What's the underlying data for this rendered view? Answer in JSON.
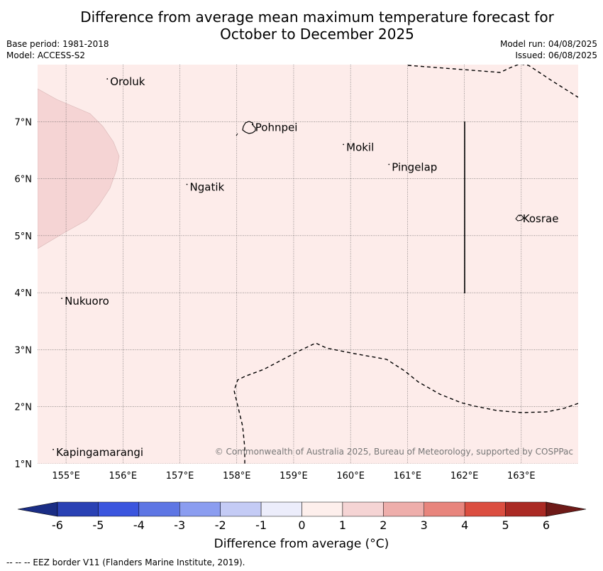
{
  "title_line1": "Difference from average mean maximum temperature forecast for",
  "title_line2": "October to December 2025",
  "base_period": "Base period: 1981-2018",
  "model": "Model: ACCESS-S2",
  "model_run": "Model run: 04/08/2025",
  "issued": "Issued: 06/08/2025",
  "copyright": "© Commonwealth of Australia 2025, Bureau of Meteorology, supported by COSPPac",
  "footer": "--  --  -- EEZ border V11 (Flanders Marine Institute, 2019).",
  "colorbar_label": "Difference from average (°C)",
  "x_ticks": [
    "155°E",
    "156°E",
    "157°E",
    "158°E",
    "159°E",
    "160°E",
    "161°E",
    "162°E",
    "163°E"
  ],
  "y_ticks": [
    "7°N",
    "6°N",
    "5°N",
    "4°N",
    "3°N",
    "2°N",
    "1°N"
  ],
  "colorbar_ticks": [
    "-6",
    "-5",
    "-4",
    "-3",
    "-2",
    "-1",
    "0",
    "1",
    "2",
    "3",
    "4",
    "5",
    "6"
  ],
  "colorbar_colors": [
    "#1a2d85",
    "#2a41b4",
    "#3b55de",
    "#5e76e4",
    "#8b9df0",
    "#c4cbf5",
    "#ecedfb",
    "#fdefec",
    "#f5d4d4",
    "#eeaeab",
    "#e8857d",
    "#db4e40",
    "#aa2a24",
    "#6e1a18"
  ],
  "places": [
    {
      "name": "Oroluk",
      "lon": 155.75,
      "lat": 7.7
    },
    {
      "name": "Pohnpei",
      "lon": 158.3,
      "lat": 6.9
    },
    {
      "name": "Mokil",
      "lon": 159.9,
      "lat": 6.55
    },
    {
      "name": "Pingelap",
      "lon": 160.7,
      "lat": 6.2
    },
    {
      "name": "Ngatik",
      "lon": 157.15,
      "lat": 5.85
    },
    {
      "name": "Kosrae",
      "lon": 163.0,
      "lat": 5.3
    },
    {
      "name": "Nukuoro",
      "lon": 154.95,
      "lat": 3.85
    },
    {
      "name": "Kapingamarangi",
      "lon": 154.8,
      "lat": 1.2
    }
  ],
  "map_extent": {
    "lon": [
      154.5,
      164.0
    ],
    "lat": [
      1.0,
      8.0
    ]
  },
  "anomaly_base_color": "#fdecea",
  "anomaly_warm_color": "#f5d4d4"
}
